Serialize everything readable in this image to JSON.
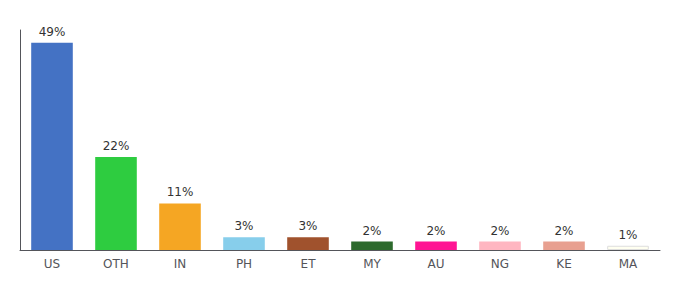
{
  "chart_data": {
    "type": "bar",
    "categories": [
      "US",
      "OTH",
      "IN",
      "PH",
      "ET",
      "MY",
      "AU",
      "NG",
      "KE",
      "MA"
    ],
    "values": [
      49,
      22,
      11,
      3,
      3,
      2,
      2,
      2,
      2,
      1
    ],
    "value_labels": [
      "49%",
      "22%",
      "11%",
      "3%",
      "3%",
      "2%",
      "2%",
      "2%",
      "2%",
      "1%"
    ],
    "colors": [
      "#4472c4",
      "#2ecc40",
      "#f5a623",
      "#87ceeb",
      "#a0522d",
      "#2d6a2d",
      "#ff1493",
      "#ffb6c1",
      "#e8a090",
      "#fffff0"
    ],
    "ylim": [
      0,
      52
    ],
    "grid": false,
    "data_labels": true,
    "tick_labels": "x"
  }
}
